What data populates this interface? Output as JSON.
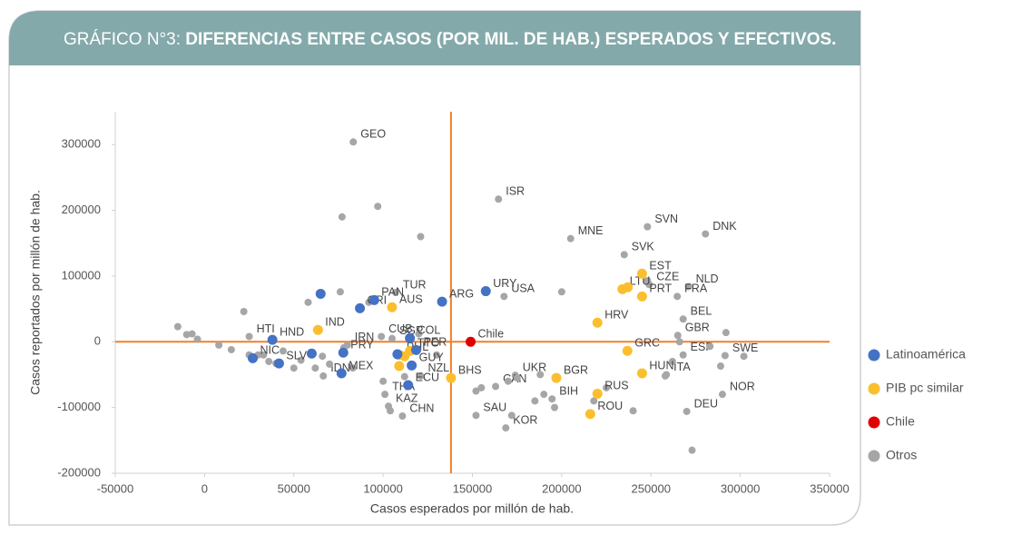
{
  "header": {
    "prefix": "GRÁFICO N°3: ",
    "title": "DIFERENCIAS ENTRE CASOS (POR MIL. DE HAB.) ESPERADOS Y EFECTIVOS."
  },
  "chart_data": {
    "type": "scatter",
    "x_label": "Casos esperados por millón de hab.",
    "y_label": "Casos reportados por millón de hab.",
    "xlim": [
      -50000,
      350000
    ],
    "xticks": [
      -50000,
      0,
      50000,
      100000,
      150000,
      200000,
      250000,
      300000,
      350000
    ],
    "ylim": [
      -200000,
      350000
    ],
    "yticks": [
      -200000,
      -100000,
      0,
      100000,
      200000,
      300000
    ],
    "grid": false,
    "legend": "right",
    "reference_lines": {
      "x": 138000,
      "y": 0,
      "color": "#f07f2a"
    },
    "series": [
      {
        "name": "Latinoamérica",
        "color": "#4472c4",
        "x": [
          65000,
          38000,
          27000,
          41700,
          60000,
          77700,
          76700,
          87000,
          95000,
          133000,
          157500,
          115000,
          118500,
          108000,
          116000,
          114000
        ],
        "y": [
          73000,
          3000,
          -25000,
          -33000,
          -18000,
          -16600,
          -48000,
          51000,
          63500,
          61000,
          77000,
          5500,
          -12500,
          -19000,
          -36000,
          -66000
        ],
        "labels": [
          null,
          "HND",
          "NIC",
          "SLV",
          null,
          "PRY",
          "MEX",
          "CRI",
          "PAN",
          "ARG",
          "URY",
          "COL",
          "PER",
          null,
          "GUY",
          "ECU"
        ]
      },
      {
        "name": "PIB pc similar",
        "color": "#fbbf2d",
        "x": [
          63500,
          105000,
          109000,
          112000,
          115000,
          109000,
          138000,
          197000,
          220000,
          234000,
          237000,
          245000,
          245000,
          236800,
          245000,
          220000,
          216000
        ],
        "y": [
          18000,
          52500,
          -20000,
          -22000,
          -14000,
          -37000,
          -55000,
          -55000,
          29000,
          80000,
          83000,
          103600,
          69000,
          -13800,
          -48000,
          -79000,
          -110000
        ],
        "labels": [
          "IND",
          "AUS",
          "PHL",
          null,
          "TTO",
          null,
          "BHS",
          "BGR",
          "HRV",
          "LTU",
          null,
          "EST",
          "PRT",
          "GRC",
          "HUN",
          "RUS",
          "ROU"
        ]
      },
      {
        "name": "Chile",
        "color": "#e00000",
        "x": [
          149000
        ],
        "y": [
          0
        ],
        "labels": [
          "Chile"
        ]
      },
      {
        "name": "Otros",
        "color": "#a6a6a6",
        "x": [
          83300,
          164600,
          205000,
          248000,
          280500,
          235000,
          249000,
          271000,
          264700,
          167700,
          268000,
          265000,
          268000,
          258600,
          291500,
          290000,
          270000,
          110800,
          103000,
          101000,
          121000,
          66500,
          25000,
          99000,
          105000,
          80000,
          107000,
          174000,
          163000,
          194600,
          152000,
          168700,
          -15000,
          -10000,
          -7000,
          -4000,
          8000,
          15000,
          22000,
          25000,
          30000,
          33000,
          36000,
          40000,
          44000,
          50000,
          54000,
          58000,
          62000,
          66000,
          70000,
          76000,
          77000,
          78000,
          83000,
          92000,
          97000,
          100000,
          104000,
          112000,
          120000,
          121000,
          130000,
          152000,
          155000,
          170000,
          175000,
          185000,
          188000,
          190000,
          196000,
          200000,
          218000,
          225000,
          240000,
          248000,
          258000,
          262000,
          266000,
          283000,
          289000,
          292000,
          302000,
          273000,
          172000
        ],
        "y": [
          304000,
          217000,
          157000,
          175000,
          164000,
          132500,
          87000,
          84000,
          69000,
          69000,
          34500,
          9700,
          -20000,
          -50000,
          -21000,
          -80000,
          -106000,
          -113000,
          -98000,
          -80000,
          -52000,
          -52000,
          8000,
          8000,
          5000,
          -5000,
          75000,
          -51000,
          -68000,
          -87000,
          -112000,
          -131000,
          23000,
          11000,
          12000,
          4000,
          -5000,
          -12000,
          46000,
          -20000,
          -20000,
          -20000,
          -30000,
          -33000,
          -14000,
          -40000,
          -28000,
          60000,
          -40000,
          -22000,
          -34000,
          76000,
          190000,
          -9000,
          -40000,
          60000,
          206000,
          -60000,
          -105000,
          -53000,
          12000,
          160000,
          -20000,
          -75000,
          -70000,
          -60000,
          -55000,
          -90000,
          -50000,
          -80000,
          -100000,
          76000,
          -90000,
          -70000,
          -105000,
          93000,
          -52000,
          -30000,
          0,
          -7000,
          -37000,
          14000,
          -22000,
          -165000,
          -112000
        ],
        "labels": [
          "GEO",
          "ISR",
          "MNE",
          "SVN",
          "DNK",
          "SVK",
          "CZE",
          "NLD",
          "FRA",
          "USA",
          "BEL",
          "GBR",
          "ESP",
          "ITA",
          "SWE",
          "NOR",
          "DEU",
          "CHN",
          "KAZ",
          "THA",
          "NZL",
          "IDN",
          "HTI",
          "CUB",
          "SGP",
          "IRN",
          "TUR",
          "UKR",
          "CAN",
          "BIH",
          "SAU",
          "KOR",
          null,
          null,
          null,
          null,
          null,
          null,
          null,
          null,
          null,
          null,
          null,
          null,
          null,
          null,
          null,
          null,
          null,
          null,
          null,
          null,
          null,
          null,
          null,
          null,
          null,
          null,
          null,
          null,
          null,
          null,
          null,
          null,
          null,
          null,
          null,
          null,
          null,
          null,
          null,
          null,
          null,
          null,
          null,
          null,
          null,
          null,
          null,
          null,
          null,
          null,
          null,
          null,
          null
        ]
      }
    ]
  }
}
